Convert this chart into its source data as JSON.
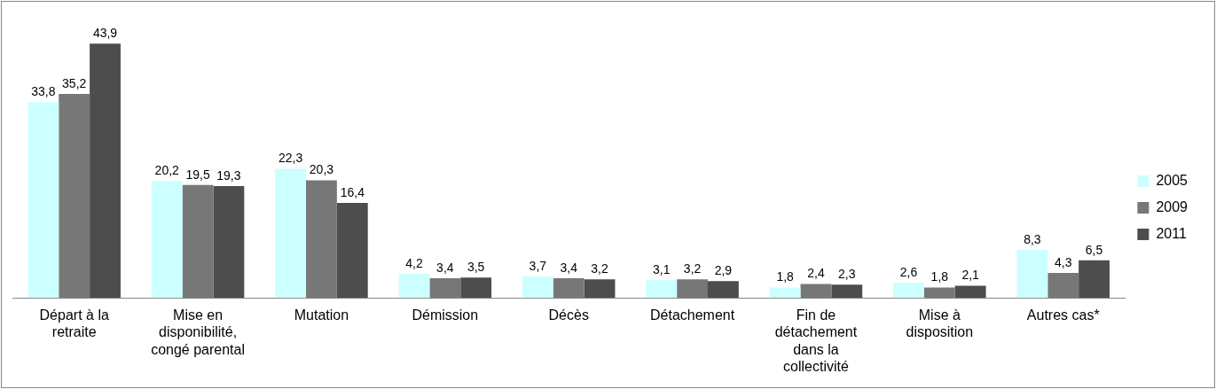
{
  "chart_data": {
    "type": "bar",
    "categories": [
      "Départ à la retraite",
      "Mise en disponibilité, congé parental",
      "Mutation",
      "Démission",
      "Décès",
      "Détachement",
      "Fin de détachement dans la collectivité",
      "Mise à disposition",
      "Autres cas*"
    ],
    "series": [
      {
        "name": "2005",
        "color": "#ccffff",
        "values": [
          33.8,
          20.2,
          22.3,
          4.2,
          3.7,
          3.1,
          1.8,
          2.6,
          8.3
        ],
        "value_labels": [
          "33,8",
          "20,2",
          "22,3",
          "4,2",
          "3,7",
          "3,1",
          "1,8",
          "2,6",
          "8,3"
        ]
      },
      {
        "name": "2009",
        "color": "#777777",
        "values": [
          35.2,
          19.5,
          20.3,
          3.4,
          3.4,
          3.2,
          2.4,
          1.8,
          4.3
        ],
        "value_labels": [
          "35,2",
          "19,5",
          "20,3",
          "3,4",
          "3,4",
          "3,2",
          "2,4",
          "1,8",
          "4,3"
        ]
      },
      {
        "name": "2011",
        "color": "#4d4d4d",
        "values": [
          43.9,
          19.3,
          16.4,
          3.5,
          3.2,
          2.9,
          2.3,
          2.1,
          6.5
        ],
        "value_labels": [
          "43,9",
          "19,3",
          "16,4",
          "3,5",
          "3,2",
          "2,9",
          "2,3",
          "2,1",
          "6,5"
        ]
      }
    ],
    "legend": "right",
    "grid": false
  }
}
